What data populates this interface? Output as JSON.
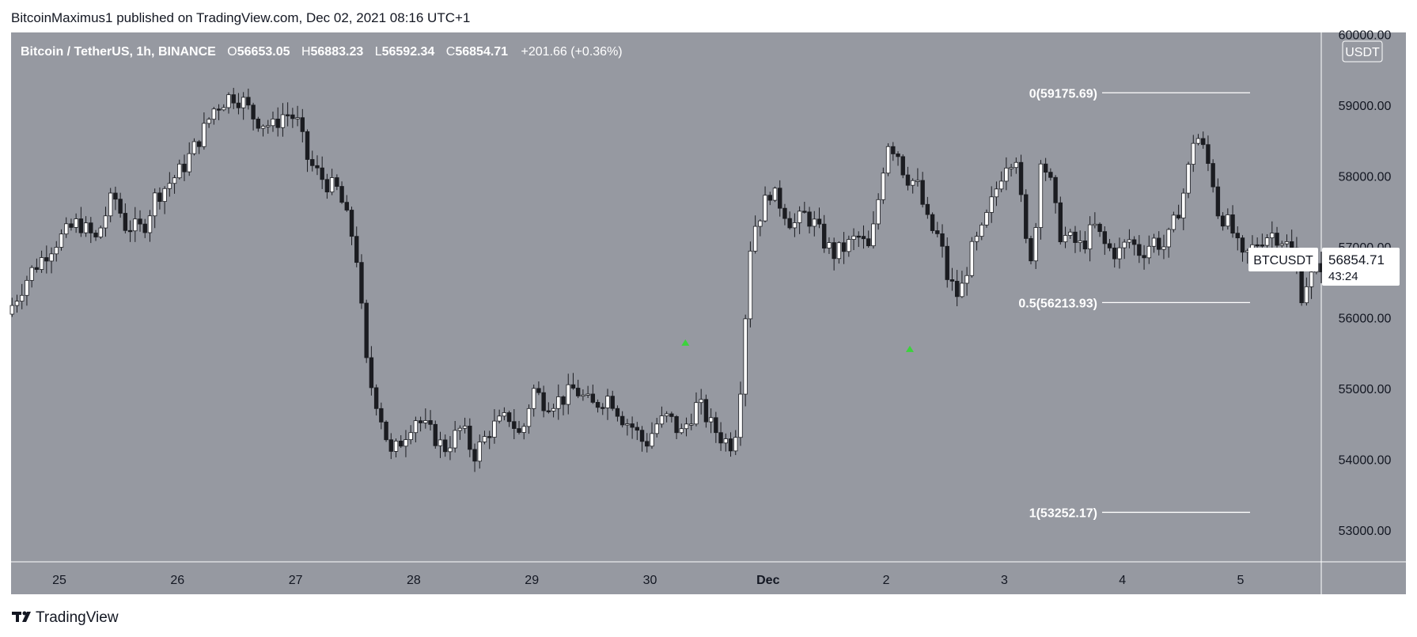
{
  "header": {
    "published_by": "BitcoinMaximus1 published on TradingView.com, Dec 02, 2021 08:16 UTC+1"
  },
  "footer": {
    "brand": "TradingView",
    "logo_icon": "tradingview-logo-icon"
  },
  "colors": {
    "chart_bg": "#9699a1",
    "up_candle": "#ffffff",
    "down_candle": "#1b1c21",
    "fib_line": "#ffffff",
    "arrow": "#3bd33b",
    "axis_text": "#131722"
  },
  "legend": {
    "symbol": "Bitcoin / TetherUS, 1h, BINANCE",
    "o_label": "O",
    "o_value": "56653.05",
    "h_label": "H",
    "h_value": "56883.23",
    "l_label": "L",
    "l_value": "56592.34",
    "c_label": "C",
    "c_value": "56854.71",
    "change": "+201.66 (+0.36%)"
  },
  "price_axis": {
    "currency": "USDT",
    "ticks": [
      "60000.00",
      "59000.00",
      "58000.00",
      "57000.00",
      "56000.00",
      "55000.00",
      "54000.00",
      "53000.00"
    ]
  },
  "price_label": {
    "symbol": "BTCUSDT",
    "price": "56854.71",
    "countdown": "43:24"
  },
  "chart_data": {
    "type": "candlestick",
    "interval": "1h",
    "symbol": "BTCUSDT",
    "time_ticks": [
      "25",
      "26",
      "27",
      "28",
      "29",
      "30",
      "Dec",
      "2",
      "3",
      "4",
      "5"
    ],
    "ylim": [
      52600,
      60100
    ],
    "fib_levels": [
      {
        "label": "0(59175.69)",
        "value": 59175.69
      },
      {
        "label": "0.5(56213.93)",
        "value": 56213.93
      },
      {
        "label": "1(53252.17)",
        "value": 53252.17
      }
    ],
    "markers": [
      {
        "type": "arrow-up",
        "day": 30.3,
        "value": 55650
      },
      {
        "type": "arrow-up",
        "day": 32.2,
        "value": 55560
      }
    ],
    "path_points": [
      [
        24.6,
        56050
      ],
      [
        24.8,
        56650
      ],
      [
        25.0,
        57050
      ],
      [
        25.2,
        57350
      ],
      [
        25.35,
        57100
      ],
      [
        25.5,
        57750
      ],
      [
        25.6,
        57300
      ],
      [
        25.75,
        57250
      ],
      [
        25.85,
        57700
      ],
      [
        26.0,
        57950
      ],
      [
        26.1,
        58150
      ],
      [
        26.25,
        58600
      ],
      [
        26.35,
        58950
      ],
      [
        26.5,
        59150
      ],
      [
        26.6,
        59050
      ],
      [
        26.7,
        58800
      ],
      [
        26.85,
        58700
      ],
      [
        26.95,
        58900
      ],
      [
        27.05,
        58800
      ],
      [
        27.15,
        58200
      ],
      [
        27.3,
        57900
      ],
      [
        27.4,
        57800
      ],
      [
        27.55,
        57000
      ],
      [
        27.65,
        55200
      ],
      [
        27.75,
        54700
      ],
      [
        27.85,
        54050
      ],
      [
        27.95,
        54300
      ],
      [
        28.05,
        54600
      ],
      [
        28.2,
        54350
      ],
      [
        28.3,
        54150
      ],
      [
        28.45,
        54450
      ],
      [
        28.55,
        54050
      ],
      [
        28.7,
        54450
      ],
      [
        28.85,
        54600
      ],
      [
        28.95,
        54300
      ],
      [
        29.05,
        55000
      ],
      [
        29.15,
        54800
      ],
      [
        29.3,
        54850
      ],
      [
        29.4,
        55000
      ],
      [
        29.55,
        54750
      ],
      [
        29.7,
        54900
      ],
      [
        29.8,
        54600
      ],
      [
        29.9,
        54450
      ],
      [
        30.0,
        54200
      ],
      [
        30.1,
        54500
      ],
      [
        30.2,
        54600
      ],
      [
        30.3,
        54350
      ],
      [
        30.45,
        54800
      ],
      [
        30.55,
        54500
      ],
      [
        30.65,
        54300
      ],
      [
        30.75,
        54200
      ],
      [
        30.8,
        54850
      ],
      [
        30.85,
        56050
      ],
      [
        30.9,
        57200
      ],
      [
        31.0,
        57550
      ],
      [
        31.05,
        57800
      ],
      [
        31.15,
        57600
      ],
      [
        31.25,
        57300
      ],
      [
        31.35,
        57450
      ],
      [
        31.45,
        57300
      ],
      [
        31.5,
        57100
      ],
      [
        31.6,
        56900
      ],
      [
        31.7,
        57000
      ],
      [
        31.8,
        57150
      ],
      [
        31.9,
        56950
      ],
      [
        31.95,
        57400
      ],
      [
        32.05,
        58500
      ],
      [
        32.15,
        58300
      ],
      [
        32.2,
        58000
      ],
      [
        32.3,
        57900
      ],
      [
        32.4,
        57300
      ],
      [
        32.5,
        57100
      ],
      [
        32.55,
        56600
      ],
      [
        32.65,
        56300
      ],
      [
        32.7,
        56500
      ],
      [
        32.75,
        56900
      ],
      [
        32.85,
        57200
      ],
      [
        32.95,
        57700
      ],
      [
        33.05,
        58200
      ],
      [
        33.15,
        58300
      ],
      [
        33.2,
        57300
      ],
      [
        33.25,
        56800
      ],
      [
        33.3,
        57100
      ],
      [
        33.35,
        58300
      ],
      [
        33.45,
        57800
      ],
      [
        33.5,
        57200
      ],
      [
        33.6,
        57100
      ],
      [
        33.7,
        57000
      ],
      [
        33.8,
        57300
      ],
      [
        33.9,
        57000
      ],
      [
        34.0,
        56900
      ],
      [
        34.1,
        57100
      ],
      [
        34.2,
        56900
      ],
      [
        34.3,
        57100
      ],
      [
        34.4,
        57000
      ],
      [
        34.45,
        57200
      ],
      [
        34.55,
        57700
      ],
      [
        34.6,
        58100
      ],
      [
        34.65,
        58600
      ],
      [
        34.7,
        58500
      ],
      [
        34.8,
        58000
      ],
      [
        34.85,
        57500
      ],
      [
        34.95,
        57300
      ],
      [
        35.0,
        57100
      ],
      [
        35.05,
        56800
      ],
      [
        35.1,
        56900
      ],
      [
        35.2,
        57100
      ],
      [
        35.3,
        57200
      ],
      [
        35.4,
        57100
      ],
      [
        35.5,
        56900
      ],
      [
        35.55,
        56300
      ],
      [
        35.6,
        56500
      ],
      [
        35.7,
        56700
      ],
      [
        35.75,
        56800
      ]
    ]
  }
}
